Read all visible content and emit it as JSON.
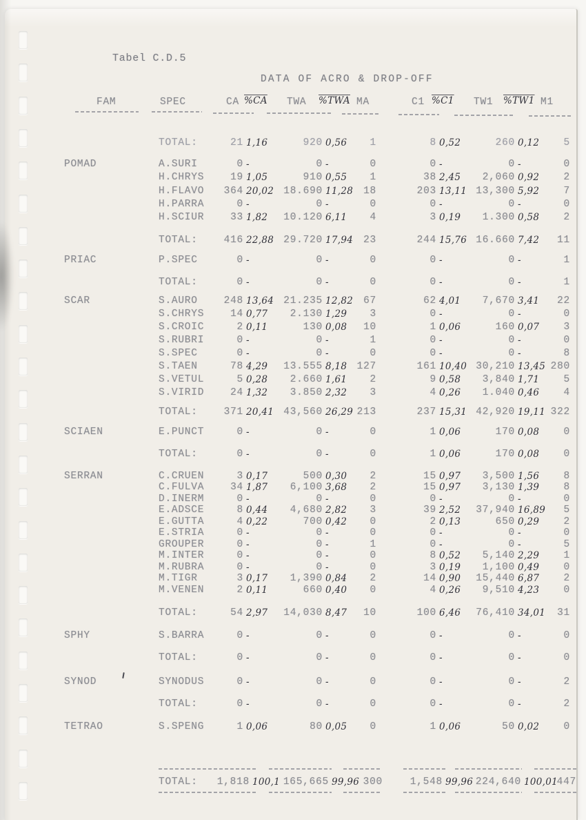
{
  "page": {
    "tab_label": "Tabel C.D.5",
    "title": "DATA OF ACRO & DROP-OFF"
  },
  "table": {
    "headers": {
      "fam": "FAM",
      "spec": "SPEC",
      "ca": "CA",
      "pca": "%CA",
      "twa": "TWA",
      "ptwa": "%TWA",
      "ma": "MA",
      "c1": "C1",
      "pc1": "%C1",
      "tw1": "TW1",
      "ptw1": "%TW1",
      "m1": "M1"
    },
    "total_label": "TOTAL:",
    "sections": [
      {
        "fam": "",
        "species": [],
        "total": {
          "ca": "21",
          "pca": "1,16",
          "twa": "920",
          "ptwa": "0,56",
          "ma": "1",
          "c1": "8",
          "pc1": "0,52",
          "tw1": "260",
          "ptw1": "0,12",
          "m1": "5"
        }
      },
      {
        "fam": "POMAD",
        "species": [
          {
            "spec": "A.SURI",
            "ca": "0",
            "pca": "-",
            "twa": "0",
            "ptwa": "-",
            "ma": "0",
            "c1": "0",
            "pc1": "-",
            "tw1": "0",
            "ptw1": "-",
            "m1": "0"
          },
          {
            "spec": "H.CHRYS",
            "ca": "19",
            "pca": "1,05",
            "twa": "910",
            "ptwa": "0,55",
            "ma": "1",
            "c1": "38",
            "pc1": "2,45",
            "tw1": "2,060",
            "ptw1": "0,92",
            "m1": "2"
          },
          {
            "spec": "H.FLAVO",
            "ca": "364",
            "pca": "20,02",
            "twa": "18.690",
            "ptwa": "11,28",
            "ma": "18",
            "c1": "203",
            "pc1": "13,11",
            "tw1": "13,300",
            "ptw1": "5,92",
            "m1": "7"
          },
          {
            "spec": "H.PARRA",
            "ca": "0",
            "pca": "-",
            "twa": "0",
            "ptwa": "-",
            "ma": "0",
            "c1": "0",
            "pc1": "-",
            "tw1": "0",
            "ptw1": "-",
            "m1": "0"
          },
          {
            "spec": "H.SCIUR",
            "ca": "33",
            "pca": "1,82",
            "twa": "10.120",
            "ptwa": "6,11",
            "ma": "4",
            "c1": "3",
            "pc1": "0,19",
            "tw1": "1.300",
            "ptw1": "0,58",
            "m1": "2"
          }
        ],
        "total": {
          "ca": "416",
          "pca": "22,88",
          "twa": "29.720",
          "ptwa": "17,94",
          "ma": "23",
          "c1": "244",
          "pc1": "15,76",
          "tw1": "16.660",
          "ptw1": "7,42",
          "m1": "11"
        }
      },
      {
        "fam": "PRIAC",
        "species": [
          {
            "spec": "P.SPEC",
            "ca": "0",
            "pca": "-",
            "twa": "0",
            "ptwa": "-",
            "ma": "0",
            "c1": "0",
            "pc1": "-",
            "tw1": "0",
            "ptw1": "-",
            "m1": "1"
          }
        ],
        "total": {
          "ca": "0",
          "pca": "-",
          "twa": "0",
          "ptwa": "-",
          "ma": "0",
          "c1": "0",
          "pc1": "-",
          "tw1": "0",
          "ptw1": "-",
          "m1": "1"
        }
      },
      {
        "fam": "SCAR",
        "species": [
          {
            "spec": "S.AURO",
            "ca": "248",
            "pca": "13,64",
            "twa": "21.235",
            "ptwa": "12,82",
            "ma": "67",
            "c1": "62",
            "pc1": "4,01",
            "tw1": "7,670",
            "ptw1": "3,41",
            "m1": "22"
          },
          {
            "spec": "S.CHRYS",
            "ca": "14",
            "pca": "0,77",
            "twa": "2.130",
            "ptwa": "1,29",
            "ma": "3",
            "c1": "0",
            "pc1": "-",
            "tw1": "0",
            "ptw1": "-",
            "m1": "0"
          },
          {
            "spec": "S.CROIC",
            "ca": "2",
            "pca": "0,11",
            "twa": "130",
            "ptwa": "0,08",
            "ma": "10",
            "c1": "1",
            "pc1": "0,06",
            "tw1": "160",
            "ptw1": "0,07",
            "m1": "3"
          },
          {
            "spec": "S.RUBRI",
            "ca": "0",
            "pca": "-",
            "twa": "0",
            "ptwa": "-",
            "ma": "1",
            "c1": "0",
            "pc1": "-",
            "tw1": "0",
            "ptw1": "-",
            "m1": "0"
          },
          {
            "spec": "S.SPEC",
            "ca": "0",
            "pca": "-",
            "twa": "0",
            "ptwa": "-",
            "ma": "0",
            "c1": "0",
            "pc1": "-",
            "tw1": "0",
            "ptw1": "-",
            "m1": "8"
          },
          {
            "spec": "S.TAEN",
            "ca": "78",
            "pca": "4,29",
            "twa": "13.555",
            "ptwa": "8,18",
            "ma": "127",
            "c1": "161",
            "pc1": "10,40",
            "tw1": "30,210",
            "ptw1": "13,45",
            "m1": "280"
          },
          {
            "spec": "S.VETUL",
            "ca": "5",
            "pca": "0,28",
            "twa": "2.660",
            "ptwa": "1,61",
            "ma": "2",
            "c1": "9",
            "pc1": "0,58",
            "tw1": "3,840",
            "ptw1": "1,71",
            "m1": "5"
          },
          {
            "spec": "S.VIRID",
            "ca": "24",
            "pca": "1,32",
            "twa": "3.850",
            "ptwa": "2,32",
            "ma": "3",
            "c1": "4",
            "pc1": "0,26",
            "tw1": "1.040",
            "ptw1": "0,46",
            "m1": "4"
          }
        ],
        "total": {
          "ca": "371",
          "pca": "20,41",
          "twa": "43,560",
          "ptwa": "26,29",
          "ma": "213",
          "c1": "237",
          "pc1": "15,31",
          "tw1": "42,920",
          "ptw1": "19,11",
          "m1": "322"
        }
      },
      {
        "fam": "SCIAEN",
        "species": [
          {
            "spec": "E.PUNCT",
            "ca": "0",
            "pca": "-",
            "twa": "0",
            "ptwa": "-",
            "ma": "0",
            "c1": "1",
            "pc1": "0,06",
            "tw1": "170",
            "ptw1": "0,08",
            "m1": "0"
          }
        ],
        "total": {
          "ca": "0",
          "pca": "-",
          "twa": "0",
          "ptwa": "-",
          "ma": "0",
          "c1": "1",
          "pc1": "0,06",
          "tw1": "170",
          "ptw1": "0,08",
          "m1": "0"
        }
      },
      {
        "fam": "SERRAN",
        "species": [
          {
            "spec": "C.CRUEN",
            "ca": "3",
            "pca": "0,17",
            "twa": "500",
            "ptwa": "0,30",
            "ma": "2",
            "c1": "15",
            "pc1": "0,97",
            "tw1": "3,500",
            "ptw1": "1,56",
            "m1": "8"
          },
          {
            "spec": "C.FULVA",
            "ca": "34",
            "pca": "1,87",
            "twa": "6,100",
            "ptwa": "3,68",
            "ma": "2",
            "c1": "15",
            "pc1": "0,97",
            "tw1": "3,130",
            "ptw1": "1,39",
            "m1": "8"
          },
          {
            "spec": "D.INERM",
            "ca": "0",
            "pca": "-",
            "twa": "0",
            "ptwa": "-",
            "ma": "0",
            "c1": "0",
            "pc1": "-",
            "tw1": "0",
            "ptw1": "-",
            "m1": "0"
          },
          {
            "spec": "E.ADSCE",
            "ca": "8",
            "pca": "0,44",
            "twa": "4,680",
            "ptwa": "2,82",
            "ma": "3",
            "c1": "39",
            "pc1": "2,52",
            "tw1": "37,940",
            "ptw1": "16,89",
            "m1": "5"
          },
          {
            "spec": "E.GUTTA",
            "ca": "4",
            "pca": "0,22",
            "twa": "700",
            "ptwa": "0,42",
            "ma": "0",
            "c1": "2",
            "pc1": "0,13",
            "tw1": "650",
            "ptw1": "0,29",
            "m1": "2"
          },
          {
            "spec": "E.STRIA",
            "ca": "0",
            "pca": "-",
            "twa": "0",
            "ptwa": "-",
            "ma": "0",
            "c1": "0",
            "pc1": "-",
            "tw1": "0",
            "ptw1": "-",
            "m1": "0"
          },
          {
            "spec": "GROUPER",
            "ca": "0",
            "pca": "-",
            "twa": "0",
            "ptwa": "-",
            "ma": "1",
            "c1": "0",
            "pc1": "-",
            "tw1": "0",
            "ptw1": "-",
            "m1": "5"
          },
          {
            "spec": "M.INTER",
            "ca": "0",
            "pca": "-",
            "twa": "0",
            "ptwa": "-",
            "ma": "0",
            "c1": "8",
            "pc1": "0,52",
            "tw1": "5,140",
            "ptw1": "2,29",
            "m1": "1"
          },
          {
            "spec": "M.RUBRA",
            "ca": "0",
            "pca": "-",
            "twa": "0",
            "ptwa": "-",
            "ma": "0",
            "c1": "3",
            "pc1": "0,19",
            "tw1": "1,100",
            "ptw1": "0,49",
            "m1": "0"
          },
          {
            "spec": "M.TIGR",
            "ca": "3",
            "pca": "0,17",
            "twa": "1,390",
            "ptwa": "0,84",
            "ma": "2",
            "c1": "14",
            "pc1": "0,90",
            "tw1": "15,440",
            "ptw1": "6,87",
            "m1": "2"
          },
          {
            "spec": "M.VENEN",
            "ca": "2",
            "pca": "0,11",
            "twa": "660",
            "ptwa": "0,40",
            "ma": "0",
            "c1": "4",
            "pc1": "0,26",
            "tw1": "9,510",
            "ptw1": "4,23",
            "m1": "0"
          }
        ],
        "total": {
          "ca": "54",
          "pca": "2,97",
          "twa": "14,030",
          "ptwa": "8,47",
          "ma": "10",
          "c1": "100",
          "pc1": "6,46",
          "tw1": "76,410",
          "ptw1": "34,01",
          "m1": "31"
        }
      },
      {
        "fam": "SPHY",
        "species": [
          {
            "spec": "S.BARRA",
            "ca": "0",
            "pca": "-",
            "twa": "0",
            "ptwa": "-",
            "ma": "0",
            "c1": "0",
            "pc1": "-",
            "tw1": "0",
            "ptw1": "-",
            "m1": "0"
          }
        ],
        "total": {
          "ca": "0",
          "pca": "-",
          "twa": "0",
          "ptwa": "-",
          "ma": "0",
          "c1": "0",
          "pc1": "-",
          "tw1": "0",
          "ptw1": "-",
          "m1": "0"
        }
      },
      {
        "fam": "SYNOD",
        "species": [
          {
            "spec": "SYNODUS",
            "ca": "0",
            "pca": "-",
            "twa": "0",
            "ptwa": "-",
            "ma": "0",
            "c1": "0",
            "pc1": "-",
            "tw1": "0",
            "ptw1": "-",
            "m1": "2"
          }
        ],
        "total": {
          "ca": "0",
          "pca": "-",
          "twa": "0",
          "ptwa": "-",
          "ma": "0",
          "c1": "0",
          "pc1": "-",
          "tw1": "0",
          "ptw1": "-",
          "m1": "2"
        }
      },
      {
        "fam": "TETRAO",
        "species": [
          {
            "spec": "S.SPENG",
            "ca": "1",
            "pca": "0,06",
            "twa": "80",
            "ptwa": "0,05",
            "ma": "0",
            "c1": "1",
            "pc1": "0,06",
            "tw1": "50",
            "ptw1": "0,02",
            "m1": "0"
          }
        ],
        "total": null
      }
    ],
    "grand_total": {
      "ca": "1,818",
      "pca": "100,1",
      "twa": "165,665",
      "ptwa": "99,96",
      "ma": "300",
      "c1": "1,548",
      "pc1": "99,96",
      "tw1": "224,640",
      "ptw1": "100,01",
      "m1": "447"
    }
  }
}
